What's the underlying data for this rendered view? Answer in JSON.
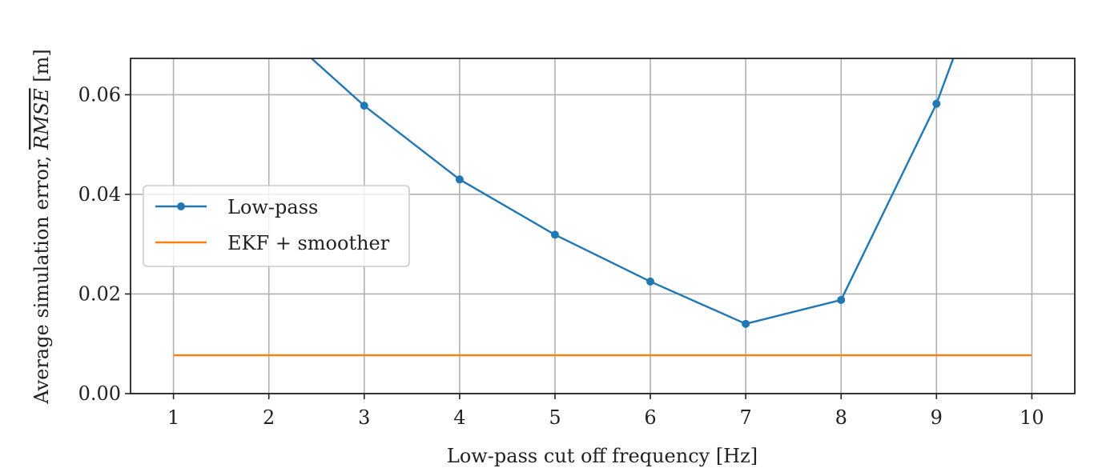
{
  "chart_data": {
    "type": "line",
    "x": [
      1,
      2,
      3,
      4,
      5,
      6,
      7,
      8,
      9,
      10
    ],
    "xlabel": "Low-pass cut off frequency [Hz]",
    "ylabel": "Average simulation error, RMSE [m]",
    "ylabel_parts": {
      "prefix": "Average simulation error, ",
      "overlined": "RMSE",
      "suffix": " [m]"
    },
    "xlim": [
      0.55,
      10.45
    ],
    "ylim": [
      0,
      0.0673
    ],
    "xticks": [
      "1",
      "2",
      "3",
      "4",
      "5",
      "6",
      "7",
      "8",
      "9",
      "10"
    ],
    "yticks": [
      {
        "value": 0,
        "label": "0.00"
      },
      {
        "value": 0.02,
        "label": "0.02"
      },
      {
        "value": 0.04,
        "label": "0.04"
      },
      {
        "value": 0.06,
        "label": "0.06"
      }
    ],
    "grid": true,
    "legend": {
      "position": "center-left"
    },
    "series": [
      {
        "name": "Low-pass",
        "color": "#1f77b4",
        "marker": "circle",
        "x": [
          2,
          3,
          4,
          5,
          6,
          7,
          8,
          9,
          10
        ],
        "values": [
          0.075,
          0.0578,
          0.043,
          0.0319,
          0.0225,
          0.014,
          0.0188,
          0.0582,
          0.11
        ]
      },
      {
        "name": "EKF + smoother",
        "color": "#ff7f0e",
        "marker": "none",
        "x": [
          1,
          10
        ],
        "values": [
          0.0077,
          0.0077
        ]
      }
    ]
  }
}
